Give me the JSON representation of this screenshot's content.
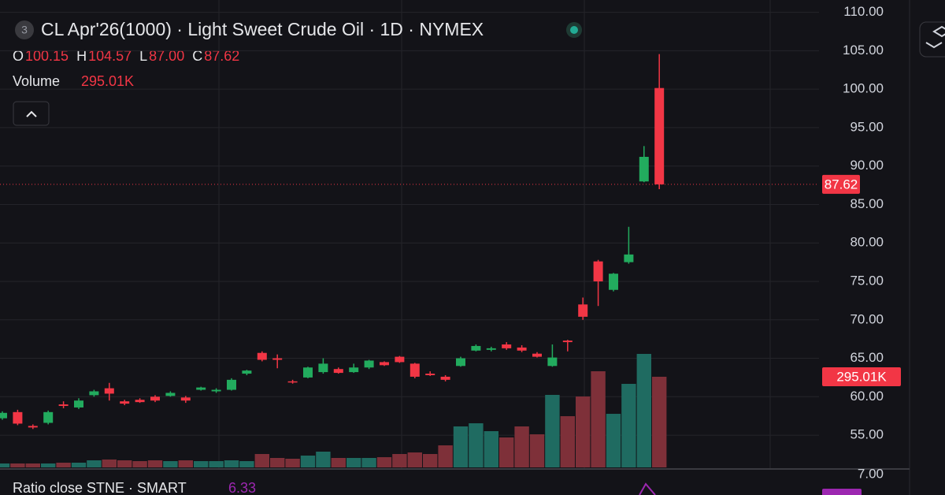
{
  "header": {
    "badge": "3",
    "title": "CL Apr'26(1000) · Light Sweet Crude Oil · 1D · NYMEX",
    "ohlc": [
      {
        "key": "O",
        "value": "100.15"
      },
      {
        "key": "H",
        "value": "104.57"
      },
      {
        "key": "L",
        "value": "87.00"
      },
      {
        "key": "C",
        "value": "87.62"
      }
    ],
    "volume_name": "Volume",
    "volume_value": "295.01K"
  },
  "chart_data": {
    "type": "candlestick",
    "up_color": "#22ab5e",
    "down_color": "#f23645",
    "volume_up_color": "#1f6b61",
    "volume_down_color": "#7e3039",
    "ylim": [
      50.6,
      111.6
    ],
    "yticks": [
      {
        "value": 110,
        "label": "110.00"
      },
      {
        "value": 105,
        "label": "105.00"
      },
      {
        "value": 100,
        "label": "100.00"
      },
      {
        "value": 95,
        "label": "95.00"
      },
      {
        "value": 90,
        "label": "90.00"
      },
      {
        "value": 85,
        "label": "85.00"
      },
      {
        "value": 80,
        "label": "80.00"
      },
      {
        "value": 75,
        "label": "75.00"
      },
      {
        "value": 70,
        "label": "70.00"
      },
      {
        "value": 65,
        "label": "65.00"
      },
      {
        "value": 60,
        "label": "60.00"
      },
      {
        "value": 55,
        "label": "55.00"
      }
    ],
    "grid": true,
    "open": [
      57.2,
      58.0,
      56.2,
      56.6,
      59.0,
      58.6,
      60.2,
      61.1,
      59.4,
      59.6,
      60.0,
      60.1,
      59.9,
      60.9,
      60.7,
      60.9,
      63.0,
      65.7,
      65.0,
      62.0,
      62.5,
      63.2,
      63.6,
      63.2,
      63.8,
      64.5,
      65.2,
      64.3,
      63.0,
      62.6,
      64.0,
      66.0,
      66.1,
      66.8,
      66.4,
      65.6,
      64.0,
      67.3,
      72.0,
      77.6,
      73.9,
      77.5,
      88.0,
      100.15
    ],
    "high": [
      58.1,
      58.3,
      56.4,
      58.2,
      59.4,
      59.8,
      60.9,
      61.8,
      59.6,
      59.8,
      60.2,
      60.7,
      60.1,
      61.3,
      61.1,
      62.4,
      63.5,
      65.9,
      65.5,
      62.2,
      63.9,
      65.0,
      63.8,
      64.3,
      64.8,
      64.6,
      65.3,
      64.4,
      63.3,
      62.8,
      65.2,
      66.8,
      66.5,
      67.1,
      66.7,
      65.8,
      66.8,
      67.4,
      72.9,
      77.8,
      76.1,
      82.1,
      92.6,
      104.57
    ],
    "low": [
      57.0,
      56.3,
      55.8,
      56.4,
      58.5,
      58.4,
      60.0,
      59.5,
      58.9,
      59.2,
      59.3,
      60.0,
      59.2,
      60.8,
      60.5,
      60.8,
      62.8,
      64.6,
      63.7,
      61.7,
      62.4,
      63.0,
      63.0,
      63.1,
      63.6,
      64.0,
      64.4,
      62.4,
      62.7,
      62.0,
      63.9,
      65.9,
      65.9,
      66.1,
      65.8,
      65.1,
      63.9,
      65.9,
      70.0,
      71.8,
      73.7,
      77.3,
      87.9,
      87.0
    ],
    "close": [
      57.9,
      56.5,
      56.0,
      58.0,
      58.8,
      59.5,
      60.7,
      60.4,
      59.1,
      59.3,
      59.5,
      60.5,
      59.5,
      61.2,
      60.9,
      62.2,
      63.4,
      64.8,
      64.8,
      61.9,
      63.8,
      64.3,
      63.1,
      63.8,
      64.7,
      64.1,
      64.5,
      62.6,
      62.8,
      62.2,
      65.0,
      66.6,
      66.3,
      66.3,
      66.0,
      65.2,
      65.1,
      67.1,
      70.4,
      75.0,
      76.0,
      78.5,
      91.2,
      87.62
    ],
    "last_label": "87.62",
    "volume": {
      "ylim": [
        0,
        1521
      ],
      "values": [
        12.8,
        12.8,
        12.8,
        12.8,
        15.4,
        15.4,
        23.1,
        25.7,
        23.1,
        20.5,
        23.1,
        20.5,
        23.1,
        20.5,
        20.5,
        23.1,
        20.5,
        43.6,
        30.8,
        28.2,
        38.5,
        51.3,
        30.8,
        30.8,
        30.8,
        33.3,
        43.6,
        48.7,
        43.6,
        71.8,
        133.4,
        143.6,
        118,
        97.5,
        133.4,
        107.7,
        236,
        166.7,
        230.9,
        312.9,
        174.4,
        271.9,
        369.4,
        295.01
      ],
      "last_label": "295.01K"
    }
  },
  "lower_pane": {
    "title": "Ratio close STNE · SMART",
    "value": "6.33",
    "tick": "7.00"
  }
}
